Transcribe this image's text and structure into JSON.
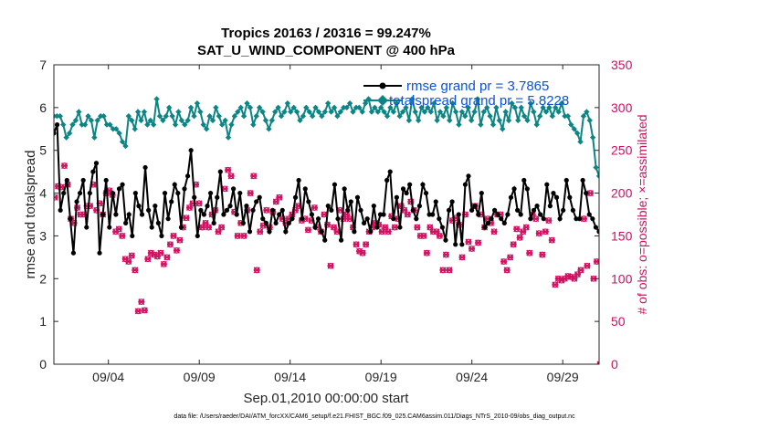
{
  "chart_data": {
    "type": "line",
    "title": "Tropics 20163 / 20316 = 99.247%",
    "subtitle": "SAT_U_WIND_COMPONENT @ 400 hPa",
    "xlabel": "Sep.01,2010 00:00:00 start",
    "ylabel": "rmse and totalspread",
    "ylabel_right": "# of obs: o=possible; ×=assimilated",
    "x_tick_labels": [
      "09/04",
      "09/09",
      "09/14",
      "09/19",
      "09/24",
      "09/29"
    ],
    "x_tick_days": [
      4,
      9,
      14,
      19,
      24,
      29
    ],
    "xlim": [
      1,
      31
    ],
    "ylim": [
      0,
      7
    ],
    "y_ticks": [
      0,
      1,
      2,
      3,
      4,
      5,
      6,
      7
    ],
    "ylim_right": [
      0,
      350
    ],
    "y_ticks_right": [
      0,
      50,
      100,
      150,
      200,
      250,
      300,
      350
    ],
    "legend_position": "top-right",
    "footnote": "data file: /Users/raeder/DAI/ATM_forcXX/CAM6_setup/f.e21.FHIST_BGC.f09_025.CAM6assim.011/Diags_NTrS_2010-09/obs_diag_output.nc",
    "series": [
      {
        "name": "rmse grand pr = 3.7865",
        "color": "#000000",
        "values": [
          5.4,
          5.6,
          3.6,
          4.0,
          4.3,
          3.4,
          2.6,
          3.8,
          4.0,
          4.3,
          3.2,
          4.0,
          4.5,
          4.7,
          2.6,
          3.5,
          4.3,
          3.2,
          4.0,
          3.5,
          4.1,
          4.2,
          3.3,
          3.5,
          3.0,
          4.0,
          3.7,
          3.5,
          4.6,
          3.6,
          3.2,
          3.7,
          3.3,
          3.0,
          4.0,
          3.4,
          3.8,
          4.2,
          4.0,
          3.2,
          4.1,
          4.4,
          5.0,
          3.9,
          3.0,
          3.6,
          3.5,
          3.7,
          4.0,
          3.3,
          3.9,
          4.5,
          3.5,
          3.6,
          3.7,
          4.1,
          3.5,
          4.0,
          3.3,
          3.7,
          3.1,
          3.6,
          3.8,
          3.9,
          3.4,
          3.3,
          3.1,
          3.6,
          3.3,
          3.5,
          3.6,
          3.1,
          3.3,
          3.4,
          3.9,
          4.3,
          3.4,
          4.1,
          3.8,
          3.5,
          3.2,
          3.4,
          3.1,
          2.9,
          3.7,
          3.6,
          4.2,
          3.4,
          2.9,
          4.1,
          3.6,
          3.8,
          3.1,
          3.9,
          3.6,
          3.3,
          3.4,
          3.1,
          3.7,
          3.2,
          3.5,
          3.5,
          4.3,
          4.5,
          3.4,
          3.9,
          3.2,
          4.1,
          4.0,
          4.2,
          3.6,
          3.4,
          3.7,
          4.2,
          4.0,
          3.5,
          3.5,
          3.8,
          3.4,
          3.2,
          2.9,
          3.6,
          3.8,
          2.8,
          3.5,
          2.8,
          4.2,
          4.4,
          3.6,
          3.7,
          3.5,
          4.0,
          3.2,
          3.3,
          3.4,
          3.6,
          3.5,
          3.4,
          3.3,
          3.5,
          3.9,
          4.1,
          3.6,
          3.5,
          4.3,
          4.1,
          3.4,
          3.6,
          3.7,
          3.5,
          3.4,
          4.2,
          3.7,
          4.0,
          3.9,
          3.4,
          3.6,
          4.3,
          3.9,
          3.6,
          3.4,
          3.4,
          4.3,
          4.0,
          3.5,
          3.4,
          3.2,
          3.1
        ]
      },
      {
        "name": "totalspread grand pr = 5.8228",
        "color": "#0e8585",
        "values": [
          5.8,
          5.8,
          5.8,
          5.6,
          5.3,
          5.4,
          5.6,
          5.7,
          5.9,
          5.6,
          5.6,
          5.8,
          5.7,
          5.3,
          5.7,
          5.8,
          5.8,
          5.6,
          5.6,
          5.5,
          5.5,
          5.4,
          5.2,
          5.1,
          5.8,
          5.7,
          5.5,
          5.9,
          5.7,
          5.9,
          5.6,
          5.7,
          5.6,
          6.2,
          5.8,
          5.7,
          5.8,
          6.0,
          5.8,
          5.6,
          5.9,
          5.7,
          5.6,
          5.7,
          6.0,
          5.8,
          6.1,
          5.9,
          5.6,
          5.5,
          5.8,
          5.7,
          6.0,
          5.8,
          5.6,
          5.7,
          5.3,
          5.6,
          5.8,
          5.9,
          6.0,
          5.8,
          6.1,
          6.0,
          5.6,
          5.8,
          6.0,
          5.9,
          5.7,
          5.5,
          5.7,
          5.9,
          6.0,
          5.8,
          5.9,
          6.1,
          5.9,
          6.0,
          5.9,
          5.7,
          5.8,
          6.0,
          5.9,
          5.8,
          6.0,
          5.9,
          5.8,
          5.9,
          6.1,
          5.9,
          6.0,
          5.8,
          5.9,
          6.0,
          6.0,
          6.1,
          5.9,
          6.0,
          6.0,
          5.9,
          6.1,
          6.2,
          5.9,
          6.0,
          5.9,
          6.0,
          5.9,
          5.8,
          6.0,
          5.9,
          6.1,
          5.8,
          5.9,
          6.0,
          5.7,
          6.2,
          5.9,
          5.7,
          6.0,
          5.9,
          6.0,
          5.9,
          6.1,
          5.7,
          5.9,
          5.8,
          6.0,
          5.7,
          6.1,
          5.9,
          5.6,
          5.9,
          5.8,
          6.0,
          5.7,
          5.9,
          6.2,
          5.6,
          5.9,
          6.0,
          5.8,
          5.6,
          6.0,
          5.7,
          5.5,
          5.9,
          5.7,
          6.1,
          6.0,
          5.7,
          6.0,
          5.8,
          5.7,
          6.1,
          5.9,
          5.6,
          5.8,
          6.0,
          5.9,
          6.0,
          5.8,
          6.0,
          5.9,
          6.1,
          5.8,
          5.8,
          5.6,
          5.5,
          5.4,
          5.2,
          5.8,
          5.9,
          5.7,
          5.3,
          4.6,
          4.4
        ]
      },
      {
        "name": "obs possible",
        "axis": "right",
        "marker": "o",
        "color": "#d01060",
        "values": [
          195,
          208,
          207,
          232,
          210,
          170,
          165,
          183,
          175,
          175,
          185,
          185,
          210,
          180,
          188,
          175,
          200,
          203,
          198,
          155,
          158,
          150,
          123,
          120,
          127,
          110,
          62,
          73,
          63,
          123,
          130,
          128,
          126,
          130,
          117,
          125,
          140,
          150,
          133,
          145,
          160,
          171,
          183,
          188,
          210,
          188,
          160,
          165,
          160,
          175,
          180,
          155,
          160,
          205,
          227,
          220,
          178,
          150,
          165,
          150,
          180,
          200,
          220,
          110,
          155,
          162,
          180,
          160,
          178,
          190,
          195,
          170,
          165,
          170,
          175,
          180,
          185,
          168,
          170,
          157,
          168,
          183,
          160,
          155,
          175,
          163,
          115,
          160,
          155,
          180,
          170,
          175,
          170,
          160,
          140,
          132,
          130,
          140,
          155,
          160,
          165,
          163,
          155,
          160,
          155,
          173,
          160,
          170,
          185,
          180,
          175,
          190,
          180,
          160,
          150,
          150,
          130,
          160,
          155,
          155,
          150,
          110,
          128,
          110,
          168,
          171,
          163,
          125,
          175,
          143,
          135,
          185,
          142,
          175,
          160,
          170,
          165,
          155,
          175,
          175,
          120,
          110,
          125,
          140,
          158,
          148,
          155,
          160,
          130,
          175,
          170,
          153,
          128,
          155,
          168,
          145,
          93,
          100,
          98,
          100,
          103,
          102,
          100,
          105,
          110,
          170,
          115,
          200,
          100,
          120,
          0
        ]
      },
      {
        "name": "obs assimilated",
        "axis": "right",
        "marker": "x",
        "color": "#d01060",
        "values": [
          195,
          208,
          207,
          232,
          210,
          170,
          165,
          183,
          175,
          175,
          185,
          185,
          210,
          180,
          188,
          175,
          200,
          203,
          198,
          155,
          158,
          150,
          123,
          120,
          127,
          110,
          62,
          73,
          63,
          123,
          130,
          128,
          126,
          130,
          117,
          125,
          140,
          150,
          133,
          145,
          160,
          171,
          183,
          188,
          210,
          188,
          160,
          165,
          160,
          175,
          180,
          155,
          160,
          205,
          227,
          220,
          178,
          150,
          165,
          150,
          180,
          200,
          220,
          110,
          155,
          162,
          180,
          160,
          178,
          190,
          195,
          170,
          165,
          170,
          175,
          180,
          185,
          168,
          170,
          157,
          168,
          183,
          160,
          155,
          175,
          163,
          115,
          160,
          155,
          180,
          170,
          175,
          170,
          160,
          140,
          132,
          130,
          140,
          155,
          160,
          165,
          163,
          155,
          160,
          155,
          173,
          160,
          170,
          185,
          180,
          175,
          190,
          180,
          160,
          150,
          150,
          130,
          160,
          155,
          155,
          150,
          110,
          128,
          110,
          168,
          171,
          163,
          125,
          175,
          143,
          135,
          185,
          142,
          175,
          160,
          170,
          165,
          155,
          175,
          175,
          120,
          110,
          125,
          140,
          158,
          148,
          155,
          160,
          130,
          175,
          170,
          153,
          128,
          155,
          168,
          145,
          93,
          100,
          98,
          100,
          103,
          102,
          100,
          105,
          110,
          170,
          115,
          200,
          100,
          120,
          0
        ]
      }
    ]
  }
}
